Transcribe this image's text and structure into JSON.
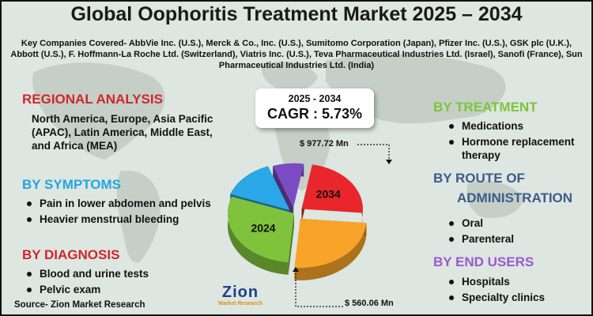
{
  "title": "Global Oophoritis Treatment Market 2025 – 2034",
  "key_companies": "Key Companies Covered- AbbVie Inc. (U.S.), Merck & Co., Inc. (U.S.), Sumitomo Corporation (Japan), Pfizer Inc. (U.S.), GSK plc (U.K.), Abbott (U.S.), F. Hoffmann-La Roche Ltd. (Switzerland), Viatris Inc. (U.S.), Teva Pharmaceutical Industries Ltd. (Israel), Sanofi (France), Sun Pharmaceutical Industries Ltd. (India)",
  "regional": {
    "heading": "REGIONAL ANALYSIS",
    "text": "North America, Europe, Asia Pacific (APAC), Latin America, Middle East, and Africa (MEA)"
  },
  "symptoms": {
    "heading": "BY SYMPTOMS",
    "items": [
      "Pain in lower abdomen and pelvis",
      "Heavier menstrual bleeding"
    ]
  },
  "diagnosis": {
    "heading": "BY DIAGNOSIS",
    "items": [
      "Blood and urine tests",
      "Pelvic exam"
    ]
  },
  "treatment": {
    "heading": "BY TREATMENT",
    "items": [
      "Medications",
      "Hormone replacement therapy"
    ]
  },
  "route": {
    "heading_line1": "BY ROUTE OF",
    "heading_line2": "ADMINISTRATION",
    "items": [
      "Oral",
      "Parenteral"
    ]
  },
  "end_users": {
    "heading": "BY END USERS",
    "items": [
      "Hospitals",
      "Specialty clinics"
    ]
  },
  "cagr": {
    "years": "2025 - 2034",
    "label": "CAGR : 5.73%"
  },
  "source": "Source- Zion Market Research",
  "logo": {
    "name": "Zion",
    "tagline": "Market Research"
  },
  "colors": {
    "red": "#e8262b",
    "blue": "#2aa7e6",
    "green": "#7fc23c",
    "orange": "#f7a428",
    "purple": "#7b4cc1"
  },
  "chart_data": {
    "type": "pie",
    "title": "",
    "annotations": [
      {
        "label": "$ 977.72 Mn",
        "year": "2034",
        "value": 977.72
      },
      {
        "label": "$ 560.06 Mn",
        "year": "2024",
        "value": 560.06
      }
    ],
    "slice_labels": [
      "2034",
      "2024"
    ],
    "slices": [
      {
        "label": "2034",
        "color": "#e8262b"
      },
      {
        "label": "",
        "color": "#f7a428"
      },
      {
        "label": "2024",
        "color": "#7fc23c"
      },
      {
        "label": "",
        "color": "#2aa7e6"
      },
      {
        "label": "",
        "color": "#7b4cc1"
      }
    ]
  }
}
